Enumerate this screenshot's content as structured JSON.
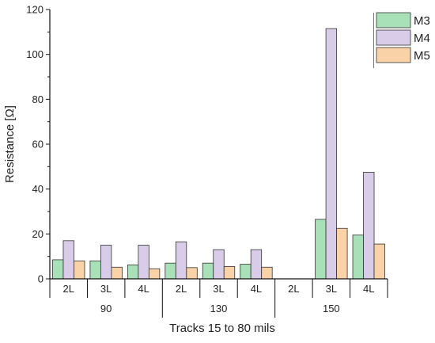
{
  "chart_data": {
    "type": "bar",
    "title": "",
    "xlabel": "Tracks 15 to 80 mils",
    "ylabel": "Resistance [Ω]",
    "ylim": [
      0,
      120
    ],
    "yticks": [
      "0",
      "20",
      "40",
      "60",
      "80",
      "100",
      "120"
    ],
    "categories": [
      "2L",
      "3L",
      "4L",
      "2L",
      "3L",
      "4L",
      "2L",
      "3L",
      "4L"
    ],
    "groups": [
      {
        "label": "90",
        "span": [
          0,
          2
        ]
      },
      {
        "label": "130",
        "span": [
          3,
          5
        ]
      },
      {
        "label": "150",
        "span": [
          6,
          8
        ]
      }
    ],
    "series": [
      {
        "name": "M3",
        "color": "#a8e0b8",
        "values": [
          8.5,
          8,
          6.2,
          7,
          7,
          6.5,
          0,
          26.5,
          19.5
        ]
      },
      {
        "name": "M4",
        "color": "#d9cce8",
        "values": [
          17,
          15,
          15,
          16.5,
          13,
          13,
          0,
          111.5,
          47.5
        ]
      },
      {
        "name": "M5",
        "color": "#f9d2a8",
        "values": [
          8,
          5.2,
          4.5,
          5,
          5.5,
          5.2,
          0,
          22.5,
          15.5
        ]
      }
    ],
    "legend_position": "top-right",
    "grid": false
  }
}
